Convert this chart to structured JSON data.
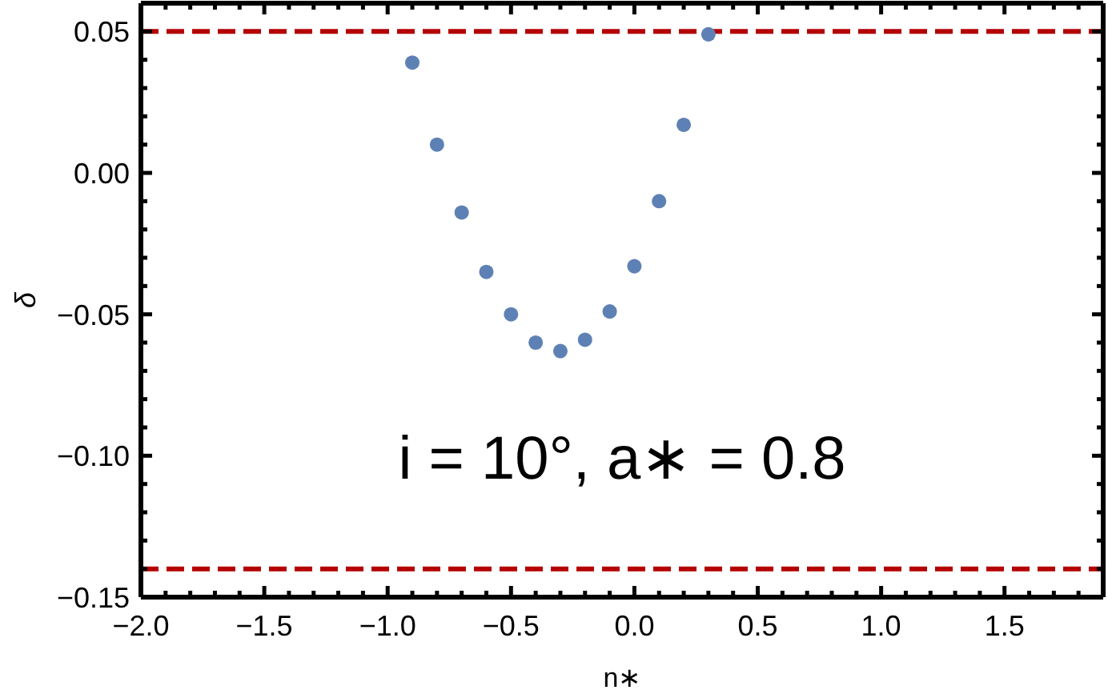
{
  "chart_data": {
    "type": "scatter",
    "xlabel": "n∗",
    "ylabel": "δ",
    "annotations": [
      "i = 10°, a∗ = 0.8"
    ],
    "x": [
      -0.9,
      -0.8,
      -0.7,
      -0.6,
      -0.5,
      -0.4,
      -0.3,
      -0.2,
      -0.1,
      0.0,
      0.1,
      0.2,
      0.3
    ],
    "values": [
      0.039,
      0.01,
      -0.014,
      -0.035,
      -0.05,
      -0.06,
      -0.063,
      -0.059,
      -0.049,
      -0.033,
      -0.01,
      0.017,
      0.049
    ],
    "color": "#5e81b5",
    "marker": "circle",
    "xlim": [
      -2.0,
      1.9
    ],
    "ylim": [
      -0.15,
      0.06
    ],
    "xticks": [
      {
        "value": -2.0,
        "label": "−2.0"
      },
      {
        "value": -1.9,
        "label": null
      },
      {
        "value": -1.8,
        "label": null
      },
      {
        "value": -1.7,
        "label": null
      },
      {
        "value": -1.6,
        "label": null
      },
      {
        "value": -1.5,
        "label": "−1.5"
      },
      {
        "value": -1.4,
        "label": null
      },
      {
        "value": -1.3,
        "label": null
      },
      {
        "value": -1.2,
        "label": null
      },
      {
        "value": -1.1,
        "label": null
      },
      {
        "value": -1.0,
        "label": "−1.0"
      },
      {
        "value": -0.9,
        "label": null
      },
      {
        "value": -0.8,
        "label": null
      },
      {
        "value": -0.7,
        "label": null
      },
      {
        "value": -0.6,
        "label": null
      },
      {
        "value": -0.5,
        "label": "−0.5"
      },
      {
        "value": -0.4,
        "label": null
      },
      {
        "value": -0.3,
        "label": null
      },
      {
        "value": -0.2,
        "label": null
      },
      {
        "value": -0.1,
        "label": null
      },
      {
        "value": 0.0,
        "label": "0.0"
      },
      {
        "value": 0.1,
        "label": null
      },
      {
        "value": 0.2,
        "label": null
      },
      {
        "value": 0.3,
        "label": null
      },
      {
        "value": 0.4,
        "label": null
      },
      {
        "value": 0.5,
        "label": "0.5"
      },
      {
        "value": 0.6,
        "label": null
      },
      {
        "value": 0.7,
        "label": null
      },
      {
        "value": 0.8,
        "label": null
      },
      {
        "value": 0.9,
        "label": null
      },
      {
        "value": 1.0,
        "label": "1.0"
      },
      {
        "value": 1.1,
        "label": null
      },
      {
        "value": 1.2,
        "label": null
      },
      {
        "value": 1.3,
        "label": null
      },
      {
        "value": 1.4,
        "label": null
      },
      {
        "value": 1.5,
        "label": "1.5"
      },
      {
        "value": 1.6,
        "label": null
      },
      {
        "value": 1.7,
        "label": null
      },
      {
        "value": 1.8,
        "label": null
      }
    ],
    "yticks": [
      {
        "value": -0.15,
        "label": "−0.15"
      },
      {
        "value": -0.14,
        "label": null
      },
      {
        "value": -0.13,
        "label": null
      },
      {
        "value": -0.12,
        "label": null
      },
      {
        "value": -0.11,
        "label": null
      },
      {
        "value": -0.1,
        "label": "−0.10"
      },
      {
        "value": -0.09,
        "label": null
      },
      {
        "value": -0.08,
        "label": null
      },
      {
        "value": -0.07,
        "label": null
      },
      {
        "value": -0.06,
        "label": null
      },
      {
        "value": -0.05,
        "label": "−0.05"
      },
      {
        "value": -0.04,
        "label": null
      },
      {
        "value": -0.03,
        "label": null
      },
      {
        "value": -0.02,
        "label": null
      },
      {
        "value": -0.01,
        "label": null
      },
      {
        "value": 0.0,
        "label": "0.00"
      },
      {
        "value": 0.01,
        "label": null
      },
      {
        "value": 0.02,
        "label": null
      },
      {
        "value": 0.03,
        "label": null
      },
      {
        "value": 0.04,
        "label": null
      },
      {
        "value": 0.05,
        "label": "0.05"
      }
    ],
    "ref_lines": [
      {
        "axis": "y",
        "value": 0.05,
        "color": "#b40000",
        "line_style": "dashed"
      },
      {
        "axis": "y",
        "value": -0.14,
        "color": "#b40000",
        "line_style": "dashed"
      }
    ]
  }
}
